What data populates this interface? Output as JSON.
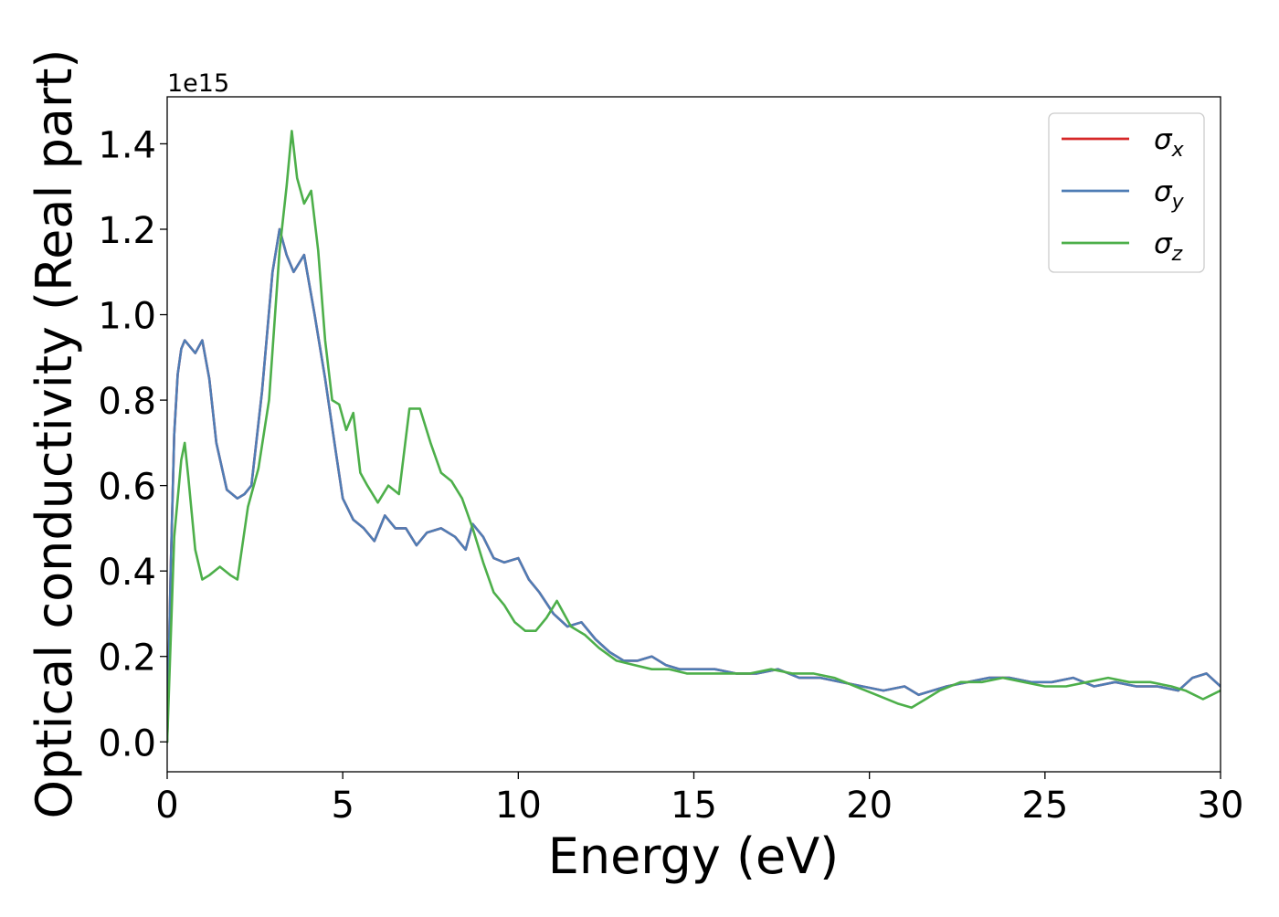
{
  "chart_data": {
    "type": "line",
    "xlabel": "Energy (eV)",
    "ylabel": "Optical conductivity (Real part)",
    "y_offset_label": "1e15",
    "xlim": [
      0,
      30
    ],
    "ylim": [
      -0.07,
      1.51
    ],
    "x_ticks": [
      0,
      5,
      10,
      15,
      20,
      25,
      30
    ],
    "y_ticks": [
      0.0,
      0.2,
      0.4,
      0.6,
      0.8,
      1.0,
      1.2,
      1.4
    ],
    "y_tick_labels": [
      "0.0",
      "0.2",
      "0.4",
      "0.6",
      "0.8",
      "1.0",
      "1.2",
      "1.4"
    ],
    "grid": false,
    "legend_position": "top-right",
    "series": [
      {
        "name": "σx",
        "legend_symbol": "σ",
        "legend_sub": "x",
        "color": "#d62728",
        "x": [
          0,
          0.1,
          0.2,
          0.3,
          0.4,
          0.5,
          0.6,
          0.8,
          1.0,
          1.2,
          1.4,
          1.7,
          2.0,
          2.2,
          2.4,
          2.7,
          3.0,
          3.2,
          3.4,
          3.6,
          3.9,
          4.2,
          4.5,
          4.8,
          5.0,
          5.3,
          5.6,
          5.9,
          6.2,
          6.5,
          6.8,
          7.1,
          7.4,
          7.8,
          8.2,
          8.5,
          8.7,
          9.0,
          9.3,
          9.6,
          10.0,
          10.3,
          10.6,
          11.0,
          11.4,
          11.8,
          12.2,
          12.6,
          13.0,
          13.4,
          13.8,
          14.2,
          14.6,
          15.0,
          15.6,
          16.2,
          16.8,
          17.4,
          18.0,
          18.6,
          19.2,
          19.8,
          20.4,
          21.0,
          21.4,
          21.8,
          22.2,
          22.8,
          23.4,
          24.0,
          24.6,
          25.2,
          25.8,
          26.4,
          27.0,
          27.6,
          28.2,
          28.8,
          29.2,
          29.6,
          30.0
        ],
        "y": [
          0.0,
          0.4,
          0.72,
          0.86,
          0.92,
          0.94,
          0.93,
          0.91,
          0.94,
          0.85,
          0.7,
          0.59,
          0.57,
          0.58,
          0.6,
          0.82,
          1.1,
          1.2,
          1.14,
          1.1,
          1.14,
          1.0,
          0.85,
          0.68,
          0.57,
          0.52,
          0.5,
          0.47,
          0.53,
          0.5,
          0.5,
          0.46,
          0.49,
          0.5,
          0.48,
          0.45,
          0.51,
          0.48,
          0.43,
          0.42,
          0.43,
          0.38,
          0.35,
          0.3,
          0.27,
          0.28,
          0.24,
          0.21,
          0.19,
          0.19,
          0.2,
          0.18,
          0.17,
          0.17,
          0.17,
          0.16,
          0.16,
          0.17,
          0.15,
          0.15,
          0.14,
          0.13,
          0.12,
          0.13,
          0.11,
          0.12,
          0.13,
          0.14,
          0.15,
          0.15,
          0.14,
          0.14,
          0.15,
          0.13,
          0.14,
          0.13,
          0.13,
          0.12,
          0.15,
          0.16,
          0.13
        ]
      },
      {
        "name": "σy",
        "legend_symbol": "σ",
        "legend_sub": "y",
        "color": "#4f7db5",
        "x": [
          0,
          0.1,
          0.2,
          0.3,
          0.4,
          0.5,
          0.6,
          0.8,
          1.0,
          1.2,
          1.4,
          1.7,
          2.0,
          2.2,
          2.4,
          2.7,
          3.0,
          3.2,
          3.4,
          3.6,
          3.9,
          4.2,
          4.5,
          4.8,
          5.0,
          5.3,
          5.6,
          5.9,
          6.2,
          6.5,
          6.8,
          7.1,
          7.4,
          7.8,
          8.2,
          8.5,
          8.7,
          9.0,
          9.3,
          9.6,
          10.0,
          10.3,
          10.6,
          11.0,
          11.4,
          11.8,
          12.2,
          12.6,
          13.0,
          13.4,
          13.8,
          14.2,
          14.6,
          15.0,
          15.6,
          16.2,
          16.8,
          17.4,
          18.0,
          18.6,
          19.2,
          19.8,
          20.4,
          21.0,
          21.4,
          21.8,
          22.2,
          22.8,
          23.4,
          24.0,
          24.6,
          25.2,
          25.8,
          26.4,
          27.0,
          27.6,
          28.2,
          28.8,
          29.2,
          29.6,
          30.0
        ],
        "y": [
          0.0,
          0.4,
          0.72,
          0.86,
          0.92,
          0.94,
          0.93,
          0.91,
          0.94,
          0.85,
          0.7,
          0.59,
          0.57,
          0.58,
          0.6,
          0.82,
          1.1,
          1.2,
          1.14,
          1.1,
          1.14,
          1.0,
          0.85,
          0.68,
          0.57,
          0.52,
          0.5,
          0.47,
          0.53,
          0.5,
          0.5,
          0.46,
          0.49,
          0.5,
          0.48,
          0.45,
          0.51,
          0.48,
          0.43,
          0.42,
          0.43,
          0.38,
          0.35,
          0.3,
          0.27,
          0.28,
          0.24,
          0.21,
          0.19,
          0.19,
          0.2,
          0.18,
          0.17,
          0.17,
          0.17,
          0.16,
          0.16,
          0.17,
          0.15,
          0.15,
          0.14,
          0.13,
          0.12,
          0.13,
          0.11,
          0.12,
          0.13,
          0.14,
          0.15,
          0.15,
          0.14,
          0.14,
          0.15,
          0.13,
          0.14,
          0.13,
          0.13,
          0.12,
          0.15,
          0.16,
          0.13
        ]
      },
      {
        "name": "σz",
        "legend_symbol": "σ",
        "legend_sub": "z",
        "color": "#4daf4a",
        "x": [
          0,
          0.2,
          0.4,
          0.5,
          0.6,
          0.8,
          1.0,
          1.2,
          1.5,
          1.8,
          2.0,
          2.3,
          2.6,
          2.9,
          3.2,
          3.4,
          3.55,
          3.7,
          3.9,
          4.1,
          4.3,
          4.5,
          4.7,
          4.9,
          5.1,
          5.3,
          5.5,
          5.7,
          6.0,
          6.3,
          6.6,
          6.9,
          7.2,
          7.5,
          7.8,
          8.1,
          8.4,
          8.7,
          9.0,
          9.3,
          9.6,
          9.9,
          10.2,
          10.5,
          10.8,
          11.1,
          11.5,
          11.9,
          12.3,
          12.8,
          13.3,
          13.8,
          14.3,
          14.8,
          15.4,
          16.0,
          16.6,
          17.2,
          17.8,
          18.4,
          19.0,
          19.6,
          20.2,
          20.8,
          21.2,
          21.6,
          22.0,
          22.6,
          23.2,
          23.8,
          24.4,
          25.0,
          25.6,
          26.2,
          26.8,
          27.4,
          28.0,
          28.6,
          29.0,
          29.5,
          30.0
        ],
        "y": [
          0.0,
          0.48,
          0.66,
          0.7,
          0.62,
          0.45,
          0.38,
          0.39,
          0.41,
          0.39,
          0.38,
          0.55,
          0.64,
          0.8,
          1.15,
          1.3,
          1.43,
          1.32,
          1.26,
          1.29,
          1.15,
          0.94,
          0.8,
          0.79,
          0.73,
          0.77,
          0.63,
          0.6,
          0.56,
          0.6,
          0.58,
          0.78,
          0.78,
          0.7,
          0.63,
          0.61,
          0.57,
          0.5,
          0.42,
          0.35,
          0.32,
          0.28,
          0.26,
          0.26,
          0.29,
          0.33,
          0.27,
          0.25,
          0.22,
          0.19,
          0.18,
          0.17,
          0.17,
          0.16,
          0.16,
          0.16,
          0.16,
          0.17,
          0.16,
          0.16,
          0.15,
          0.13,
          0.11,
          0.09,
          0.08,
          0.1,
          0.12,
          0.14,
          0.14,
          0.15,
          0.14,
          0.13,
          0.13,
          0.14,
          0.15,
          0.14,
          0.14,
          0.13,
          0.12,
          0.1,
          0.12
        ]
      }
    ]
  }
}
